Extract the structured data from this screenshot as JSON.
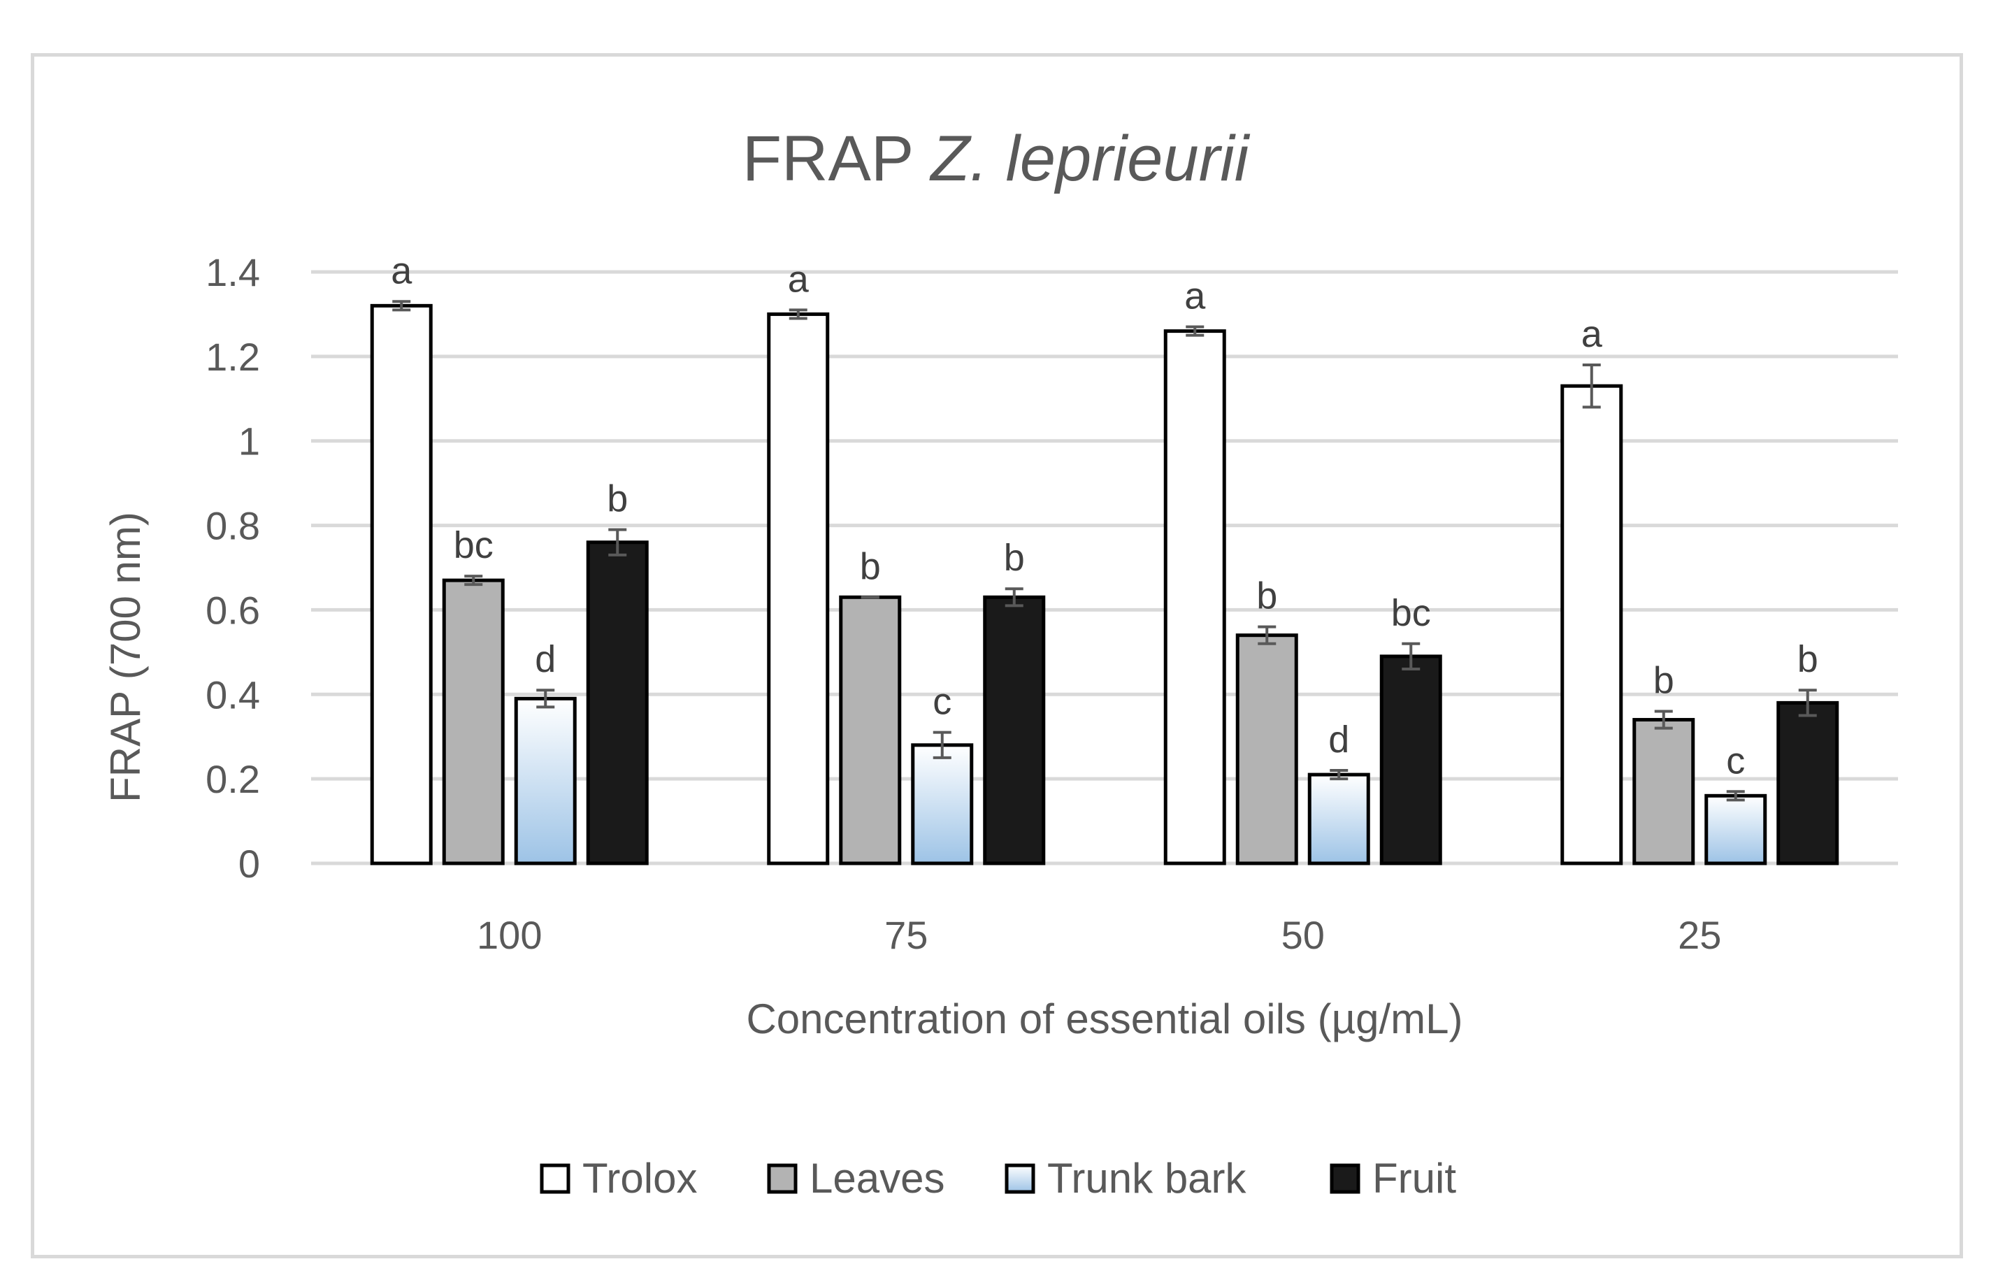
{
  "chart_data": {
    "type": "bar",
    "title": "FRAP Z. leprieurii",
    "title_parts": {
      "plain": "FRAP ",
      "italic": "Z. leprieurii"
    },
    "xlabel": "Concentration of essential oils (µg/mL)",
    "ylabel": "FRAP (700 nm)",
    "ylim": [
      0,
      1.4
    ],
    "yticks": [
      0,
      0.2,
      0.4,
      0.6,
      0.8,
      1,
      1.2,
      1.4
    ],
    "ytick_labels": [
      "0",
      "0.2",
      "0.4",
      "0.6",
      "0.8",
      "1",
      "1.2",
      "1.4"
    ],
    "categories": [
      "100",
      "75",
      "50",
      "25"
    ],
    "grid": true,
    "legend_position": "bottom",
    "series": [
      {
        "name": "Trolox",
        "fill": "#ffffff",
        "values": [
          1.32,
          1.3,
          1.26,
          1.13
        ],
        "errors": [
          0.01,
          0.01,
          0.01,
          0.05
        ],
        "labels": [
          "a",
          "a",
          "a",
          "a"
        ]
      },
      {
        "name": "Leaves",
        "fill": "#b3b3b3",
        "values": [
          0.67,
          0.63,
          0.54,
          0.34
        ],
        "errors": [
          0.01,
          0.0,
          0.02,
          0.02
        ],
        "labels": [
          "bc",
          "b",
          "b",
          "b"
        ]
      },
      {
        "name": "Trunk bark",
        "fill": "gradient",
        "gradient": [
          "#ffffff",
          "#9dc3e6"
        ],
        "values": [
          0.39,
          0.28,
          0.21,
          0.16
        ],
        "errors": [
          0.02,
          0.03,
          0.01,
          0.01
        ],
        "labels": [
          "d",
          "c",
          "d",
          "c"
        ]
      },
      {
        "name": "Fruit",
        "fill": "#1a1a1a",
        "values": [
          0.76,
          0.63,
          0.49,
          0.38
        ],
        "errors": [
          0.03,
          0.02,
          0.03,
          0.03
        ],
        "labels": [
          "b",
          "b",
          "bc",
          "b"
        ]
      }
    ]
  }
}
